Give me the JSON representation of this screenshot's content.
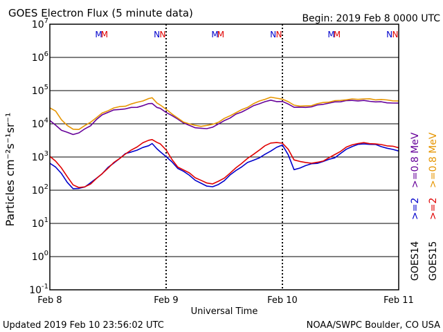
{
  "chart_data": {
    "type": "line",
    "title": "GOES Electron Flux (5 minute data)",
    "begin_label": "Begin: 2019 Feb 8 0000 UTC",
    "footer_left": "Updated 2019 Feb 10 23:56:02 UTC",
    "footer_right": "NOAA/SWPC Boulder, CO USA",
    "xlabel": "Universal Time",
    "ylabel": "Particles cm⁻²s⁻¹sr⁻¹",
    "y_scale": "log",
    "ylim": [
      0.1,
      10000000
    ],
    "xlim": [
      0,
      3
    ],
    "x_unit": "days since Feb 8 00:00 UTC",
    "x_ticks": [
      {
        "x": 0,
        "label": "Feb 8"
      },
      {
        "x": 1,
        "label": "Feb 9"
      },
      {
        "x": 2,
        "label": "Feb 10"
      },
      {
        "x": 3,
        "label": "Feb 11"
      }
    ],
    "y_ticks": [
      {
        "exp": "-1"
      },
      {
        "exp": "0"
      },
      {
        "exp": "1"
      },
      {
        "exp": "2"
      },
      {
        "exp": "3"
      },
      {
        "exp": "4"
      },
      {
        "exp": "5"
      },
      {
        "exp": "6"
      },
      {
        "exp": "7"
      }
    ],
    "threshold": {
      "value": 1000,
      "style": "dashed",
      "color": "#000000"
    },
    "local_time_markers": [
      {
        "x": 0.42,
        "label": "M",
        "color": "#0000cc"
      },
      {
        "x": 0.47,
        "label": "M",
        "color": "#e00000"
      },
      {
        "x": 0.92,
        "label": "N",
        "color": "#0000cc"
      },
      {
        "x": 0.97,
        "label": "N",
        "color": "#e00000"
      },
      {
        "x": 1.42,
        "label": "M",
        "color": "#0000cc"
      },
      {
        "x": 1.47,
        "label": "M",
        "color": "#e00000"
      },
      {
        "x": 1.92,
        "label": "N",
        "color": "#0000cc"
      },
      {
        "x": 1.97,
        "label": "N",
        "color": "#e00000"
      },
      {
        "x": 2.42,
        "label": "M",
        "color": "#0000cc"
      },
      {
        "x": 2.47,
        "label": "M",
        "color": "#e00000"
      },
      {
        "x": 2.92,
        "label": "N",
        "color": "#0000cc"
      },
      {
        "x": 2.97,
        "label": "N",
        "color": "#e00000"
      }
    ],
    "legend": {
      "placement": "right side, rotated",
      "satellites": [
        "GOES14",
        "GOES15"
      ],
      "entries": [
        {
          "label": ">=2",
          "color": "#0000cc"
        },
        {
          "label": ">=0.8 MeV",
          "color": "#660099"
        },
        {
          "label": ">=2",
          "color": "#e00000"
        },
        {
          "label": ">=0.8 MeV",
          "color": "#e69500"
        }
      ]
    },
    "series": [
      {
        "name": "GOES14 >=2 MeV",
        "color": "#0000cc",
        "x": [
          0,
          0.05,
          0.1,
          0.15,
          0.2,
          0.25,
          0.3,
          0.35,
          0.4,
          0.45,
          0.5,
          0.55,
          0.6,
          0.65,
          0.7,
          0.75,
          0.8,
          0.85,
          0.88,
          0.92,
          0.95,
          1.0,
          1.05,
          1.1,
          1.15,
          1.2,
          1.25,
          1.3,
          1.35,
          1.4,
          1.45,
          1.5,
          1.55,
          1.6,
          1.65,
          1.7,
          1.75,
          1.8,
          1.85,
          1.9,
          1.95,
          2.0,
          2.05,
          2.1,
          2.15,
          2.2,
          2.25,
          2.3,
          2.35,
          2.4,
          2.45,
          2.5,
          2.55,
          2.6,
          2.65,
          2.7,
          2.75,
          2.8,
          2.85,
          2.9,
          2.95,
          3.0
        ],
        "y": [
          650,
          500,
          300,
          170,
          110,
          110,
          130,
          170,
          230,
          330,
          480,
          650,
          900,
          1200,
          1400,
          1600,
          1900,
          2300,
          2600,
          1800,
          1500,
          1000,
          700,
          450,
          350,
          280,
          200,
          160,
          140,
          130,
          150,
          200,
          280,
          380,
          500,
          650,
          800,
          950,
          1200,
          1600,
          2000,
          2300,
          1200,
          400,
          450,
          550,
          600,
          650,
          750,
          850,
          1000,
          1300,
          1700,
          2100,
          2300,
          2400,
          2400,
          2300,
          2100,
          1900,
          1700,
          1600
        ]
      },
      {
        "name": "GOES15 >=2 MeV",
        "color": "#e00000",
        "x": [
          0,
          0.05,
          0.1,
          0.15,
          0.2,
          0.25,
          0.3,
          0.35,
          0.4,
          0.45,
          0.5,
          0.55,
          0.6,
          0.65,
          0.7,
          0.75,
          0.8,
          0.85,
          0.88,
          0.92,
          0.95,
          1.0,
          1.05,
          1.1,
          1.15,
          1.2,
          1.25,
          1.3,
          1.35,
          1.4,
          1.45,
          1.5,
          1.55,
          1.6,
          1.65,
          1.7,
          1.75,
          1.8,
          1.85,
          1.9,
          1.95,
          2.0,
          2.05,
          2.1,
          2.15,
          2.2,
          2.25,
          2.3,
          2.35,
          2.4,
          2.45,
          2.5,
          2.55,
          2.6,
          2.65,
          2.7,
          2.75,
          2.8,
          2.85,
          2.9,
          2.95,
          3.0
        ],
        "y": [
          1000,
          750,
          450,
          250,
          150,
          120,
          130,
          160,
          220,
          320,
          450,
          650,
          900,
          1200,
          1600,
          2100,
          2700,
          3300,
          3500,
          2700,
          2500,
          1600,
          800,
          500,
          400,
          330,
          250,
          200,
          170,
          160,
          180,
          230,
          320,
          450,
          650,
          900,
          1200,
          1700,
          2200,
          2700,
          2800,
          2500,
          1700,
          800,
          700,
          700,
          650,
          700,
          800,
          950,
          1200,
          1500,
          1900,
          2300,
          2500,
          2600,
          2600,
          2500,
          2400,
          2300,
          2100,
          1900
        ]
      },
      {
        "name": "GOES14 >=0.8 MeV",
        "color": "#660099",
        "x": [
          0,
          0.05,
          0.1,
          0.15,
          0.2,
          0.25,
          0.3,
          0.35,
          0.4,
          0.45,
          0.5,
          0.55,
          0.6,
          0.65,
          0.7,
          0.75,
          0.8,
          0.85,
          0.88,
          0.92,
          0.95,
          1.0,
          1.05,
          1.1,
          1.15,
          1.2,
          1.25,
          1.3,
          1.35,
          1.4,
          1.45,
          1.5,
          1.55,
          1.6,
          1.65,
          1.7,
          1.75,
          1.8,
          1.85,
          1.9,
          1.95,
          2.0,
          2.05,
          2.1,
          2.15,
          2.2,
          2.25,
          2.3,
          2.35,
          2.4,
          2.45,
          2.5,
          2.55,
          2.6,
          2.65,
          2.7,
          2.75,
          2.8,
          2.85,
          2.9,
          2.95,
          3.0
        ],
        "y": [
          12000,
          9000,
          6500,
          5500,
          5000,
          5500,
          7000,
          9000,
          13000,
          18000,
          22000,
          25000,
          27000,
          29000,
          31000,
          33000,
          36000,
          40000,
          42000,
          30000,
          28000,
          22000,
          17000,
          14000,
          11000,
          9000,
          8000,
          7500,
          7000,
          8000,
          9500,
          12000,
          15000,
          19000,
          23000,
          29000,
          35000,
          42000,
          47000,
          50000,
          47000,
          45000,
          38000,
          32000,
          31000,
          32000,
          34000,
          37000,
          40000,
          42000,
          44000,
          46000,
          48000,
          49000,
          50000,
          50000,
          49000,
          48000,
          46000,
          44000,
          42000,
          40000
        ]
      },
      {
        "name": "GOES15 >=0.8 MeV",
        "color": "#e69500",
        "x": [
          0,
          0.05,
          0.1,
          0.15,
          0.2,
          0.25,
          0.3,
          0.35,
          0.4,
          0.45,
          0.5,
          0.55,
          0.6,
          0.65,
          0.7,
          0.75,
          0.8,
          0.85,
          0.88,
          0.92,
          0.95,
          1.0,
          1.05,
          1.1,
          1.15,
          1.2,
          1.25,
          1.3,
          1.35,
          1.4,
          1.45,
          1.5,
          1.55,
          1.6,
          1.65,
          1.7,
          1.75,
          1.8,
          1.85,
          1.9,
          1.95,
          2.0,
          2.05,
          2.1,
          2.15,
          2.2,
          2.25,
          2.3,
          2.35,
          2.4,
          2.45,
          2.5,
          2.55,
          2.6,
          2.65,
          2.7,
          2.75,
          2.8,
          2.85,
          2.9,
          2.95,
          3.0
        ],
        "y": [
          30000,
          24000,
          14000,
          9000,
          7000,
          7000,
          8500,
          11000,
          15000,
          20000,
          25000,
          30000,
          33000,
          36000,
          40000,
          45000,
          50000,
          55000,
          60000,
          42000,
          35000,
          28000,
          20000,
          15000,
          12000,
          10000,
          9000,
          8500,
          8500,
          9500,
          11000,
          14000,
          18000,
          22000,
          27000,
          33000,
          40000,
          48000,
          55000,
          60000,
          58000,
          55000,
          45000,
          38000,
          35000,
          35000,
          37000,
          40000,
          43000,
          45000,
          47000,
          50000,
          53000,
          55000,
          57000,
          58000,
          57000,
          55000,
          53000,
          51000,
          49000,
          46000
        ]
      }
    ]
  }
}
